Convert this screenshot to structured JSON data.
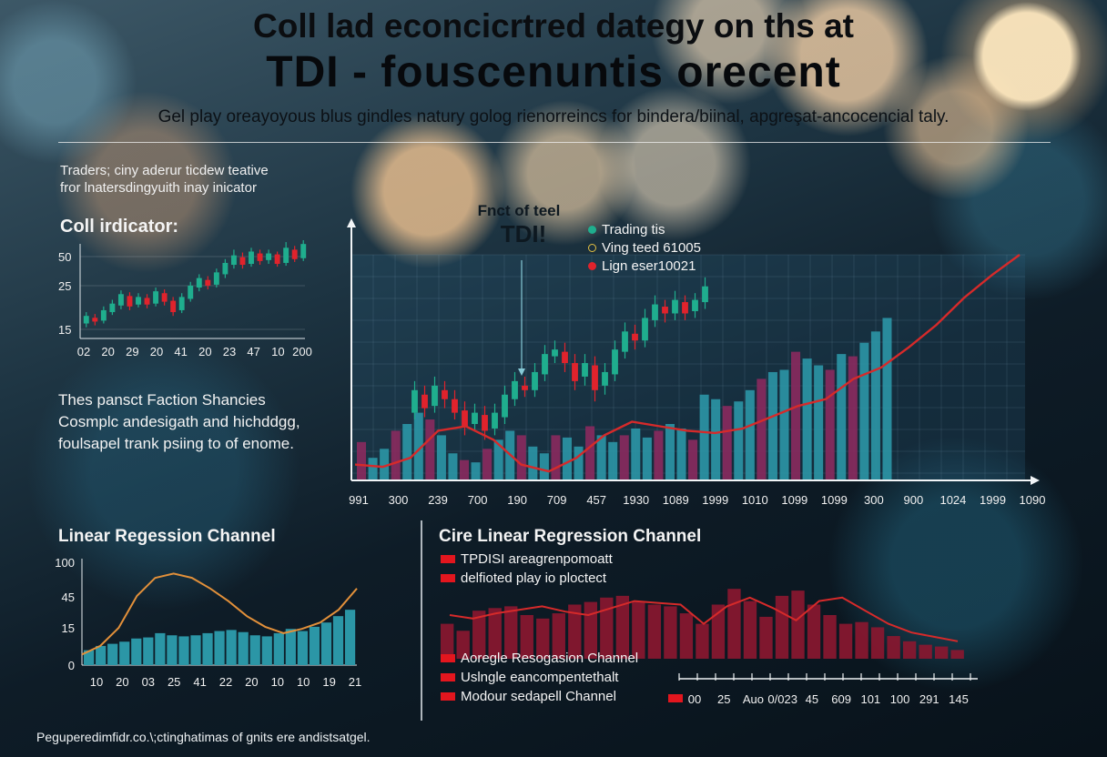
{
  "header": {
    "title_line1": "Coll lad econcicrtred dategy on ths at",
    "title_line2": "TDI - fouscenuntis orecent",
    "subtitle": "Gel play oreayoyous blus gindles natury golog rienorreincs for bindera/biinal, apgreşat-ancocencial taly."
  },
  "intro": {
    "line1": "Traders; ciny aderur ticdew teative",
    "line2": "fror lnatersdingyuith inay inicator"
  },
  "paragraph": {
    "line1": "Thes pansct Faction Shancies",
    "line2": "Cosmplc andesigath and hichddgg,",
    "line3": "foulsapel trank psiing to of enome."
  },
  "footnote": "Peguperedimfidr.co.\\;ctinghatimas of gnits ere andistsatgel.",
  "colors": {
    "candle_up": "#1fae8e",
    "candle_down": "#e0232c",
    "bar_teal": "#2b96a6",
    "bar_magenta": "#8a2a5e",
    "regression_line": "#d62a2a",
    "orange_line": "#e2903a",
    "bar_red": "#8c1730"
  },
  "chart_data": [
    {
      "type": "candlestick",
      "title": "Coll irdicator:",
      "yticks": [
        "50",
        "25",
        "15"
      ],
      "xticks": [
        "02",
        "20",
        "29",
        "20",
        "41",
        "20",
        "23",
        "47",
        "10",
        "200"
      ],
      "candles": [
        {
          "o": 0.12,
          "c": 0.2,
          "h": 0.24,
          "l": 0.08
        },
        {
          "o": 0.18,
          "c": 0.14,
          "h": 0.22,
          "l": 0.1
        },
        {
          "o": 0.15,
          "c": 0.26,
          "h": 0.3,
          "l": 0.12
        },
        {
          "o": 0.24,
          "c": 0.33,
          "h": 0.37,
          "l": 0.21
        },
        {
          "o": 0.31,
          "c": 0.43,
          "h": 0.47,
          "l": 0.27
        },
        {
          "o": 0.41,
          "c": 0.3,
          "h": 0.45,
          "l": 0.26
        },
        {
          "o": 0.32,
          "c": 0.4,
          "h": 0.44,
          "l": 0.29
        },
        {
          "o": 0.39,
          "c": 0.32,
          "h": 0.43,
          "l": 0.28
        },
        {
          "o": 0.33,
          "c": 0.46,
          "h": 0.5,
          "l": 0.3
        },
        {
          "o": 0.44,
          "c": 0.35,
          "h": 0.48,
          "l": 0.31
        },
        {
          "o": 0.36,
          "c": 0.24,
          "h": 0.4,
          "l": 0.2
        },
        {
          "o": 0.26,
          "c": 0.4,
          "h": 0.44,
          "l": 0.23
        },
        {
          "o": 0.38,
          "c": 0.52,
          "h": 0.56,
          "l": 0.35
        },
        {
          "o": 0.5,
          "c": 0.6,
          "h": 0.64,
          "l": 0.46
        },
        {
          "o": 0.58,
          "c": 0.52,
          "h": 0.62,
          "l": 0.48
        },
        {
          "o": 0.53,
          "c": 0.66,
          "h": 0.7,
          "l": 0.5
        },
        {
          "o": 0.64,
          "c": 0.76,
          "h": 0.8,
          "l": 0.6
        },
        {
          "o": 0.74,
          "c": 0.84,
          "h": 0.9,
          "l": 0.7
        },
        {
          "o": 0.82,
          "c": 0.74,
          "h": 0.87,
          "l": 0.7
        },
        {
          "o": 0.75,
          "c": 0.88,
          "h": 0.92,
          "l": 0.72
        },
        {
          "o": 0.86,
          "c": 0.78,
          "h": 0.9,
          "l": 0.74
        },
        {
          "o": 0.79,
          "c": 0.86,
          "h": 0.9,
          "l": 0.75
        },
        {
          "o": 0.85,
          "c": 0.75,
          "h": 0.88,
          "l": 0.72
        },
        {
          "o": 0.76,
          "c": 0.92,
          "h": 0.98,
          "l": 0.73
        },
        {
          "o": 0.9,
          "c": 0.8,
          "h": 0.94,
          "l": 0.77
        },
        {
          "o": 0.81,
          "c": 0.96,
          "h": 1.0,
          "l": 0.78
        }
      ]
    },
    {
      "type": "bar+candlestick+line",
      "annotation_line1": "Fnct of teel",
      "annotation_line2": "TDI!",
      "legend": [
        {
          "label": "Trading tis",
          "color": "#1fae8e"
        },
        {
          "label": "Ving teed 61005",
          "color": "#e2c043"
        },
        {
          "label": "Lign eser10021",
          "color": "#e0232c"
        }
      ],
      "xticks": [
        "991",
        "300",
        "239",
        "700",
        "190",
        "709",
        "457",
        "1930",
        "1089",
        "1999",
        "1010",
        "1099",
        "1099",
        "300",
        "900",
        "1024",
        "1999",
        "1090"
      ],
      "bars": [
        {
          "v": 0.17,
          "c": "m"
        },
        {
          "v": 0.1,
          "c": "t"
        },
        {
          "v": 0.14,
          "c": "t"
        },
        {
          "v": 0.22,
          "c": "m"
        },
        {
          "v": 0.25,
          "c": "t"
        },
        {
          "v": 0.3,
          "c": "t"
        },
        {
          "v": 0.27,
          "c": "m"
        },
        {
          "v": 0.2,
          "c": "t"
        },
        {
          "v": 0.12,
          "c": "t"
        },
        {
          "v": 0.09,
          "c": "m"
        },
        {
          "v": 0.08,
          "c": "t"
        },
        {
          "v": 0.14,
          "c": "m"
        },
        {
          "v": 0.18,
          "c": "t"
        },
        {
          "v": 0.22,
          "c": "t"
        },
        {
          "v": 0.2,
          "c": "m"
        },
        {
          "v": 0.15,
          "c": "t"
        },
        {
          "v": 0.12,
          "c": "t"
        },
        {
          "v": 0.2,
          "c": "m"
        },
        {
          "v": 0.19,
          "c": "t"
        },
        {
          "v": 0.15,
          "c": "t"
        },
        {
          "v": 0.24,
          "c": "m"
        },
        {
          "v": 0.2,
          "c": "t"
        },
        {
          "v": 0.17,
          "c": "t"
        },
        {
          "v": 0.2,
          "c": "m"
        },
        {
          "v": 0.23,
          "c": "t"
        },
        {
          "v": 0.19,
          "c": "t"
        },
        {
          "v": 0.22,
          "c": "m"
        },
        {
          "v": 0.25,
          "c": "t"
        },
        {
          "v": 0.23,
          "c": "t"
        },
        {
          "v": 0.18,
          "c": "m"
        },
        {
          "v": 0.38,
          "c": "t"
        },
        {
          "v": 0.36,
          "c": "t"
        },
        {
          "v": 0.33,
          "c": "m"
        },
        {
          "v": 0.35,
          "c": "t"
        },
        {
          "v": 0.4,
          "c": "t"
        },
        {
          "v": 0.45,
          "c": "m"
        },
        {
          "v": 0.48,
          "c": "t"
        },
        {
          "v": 0.49,
          "c": "t"
        },
        {
          "v": 0.57,
          "c": "m"
        },
        {
          "v": 0.54,
          "c": "t"
        },
        {
          "v": 0.51,
          "c": "t"
        },
        {
          "v": 0.49,
          "c": "m"
        },
        {
          "v": 0.56,
          "c": "t"
        },
        {
          "v": 0.55,
          "c": "m"
        },
        {
          "v": 0.61,
          "c": "t"
        },
        {
          "v": 0.66,
          "c": "t"
        },
        {
          "v": 0.72,
          "c": "t"
        }
      ],
      "candles": [
        {
          "o": 0.3,
          "c": 0.4,
          "h": 0.44,
          "l": 0.27
        },
        {
          "o": 0.38,
          "c": 0.32,
          "h": 0.42,
          "l": 0.28
        },
        {
          "o": 0.33,
          "c": 0.42,
          "h": 0.46,
          "l": 0.3
        },
        {
          "o": 0.4,
          "c": 0.36,
          "h": 0.44,
          "l": 0.32
        },
        {
          "o": 0.36,
          "c": 0.3,
          "h": 0.4,
          "l": 0.27
        },
        {
          "o": 0.31,
          "c": 0.24,
          "h": 0.35,
          "l": 0.2
        },
        {
          "o": 0.25,
          "c": 0.3,
          "h": 0.34,
          "l": 0.22
        },
        {
          "o": 0.29,
          "c": 0.22,
          "h": 0.33,
          "l": 0.18
        },
        {
          "o": 0.23,
          "c": 0.3,
          "h": 0.34,
          "l": 0.2
        },
        {
          "o": 0.28,
          "c": 0.38,
          "h": 0.42,
          "l": 0.25
        },
        {
          "o": 0.36,
          "c": 0.44,
          "h": 0.48,
          "l": 0.33
        },
        {
          "o": 0.42,
          "c": 0.4,
          "h": 0.46,
          "l": 0.37
        },
        {
          "o": 0.4,
          "c": 0.48,
          "h": 0.52,
          "l": 0.37
        },
        {
          "o": 0.47,
          "c": 0.56,
          "h": 0.6,
          "l": 0.44
        },
        {
          "o": 0.55,
          "c": 0.58,
          "h": 0.62,
          "l": 0.52
        },
        {
          "o": 0.57,
          "c": 0.52,
          "h": 0.61,
          "l": 0.48
        },
        {
          "o": 0.52,
          "c": 0.44,
          "h": 0.56,
          "l": 0.4
        },
        {
          "o": 0.46,
          "c": 0.52,
          "h": 0.56,
          "l": 0.42
        },
        {
          "o": 0.51,
          "c": 0.4,
          "h": 0.55,
          "l": 0.35
        },
        {
          "o": 0.42,
          "c": 0.48,
          "h": 0.52,
          "l": 0.38
        },
        {
          "o": 0.47,
          "c": 0.58,
          "h": 0.62,
          "l": 0.44
        },
        {
          "o": 0.57,
          "c": 0.66,
          "h": 0.7,
          "l": 0.54
        },
        {
          "o": 0.65,
          "c": 0.62,
          "h": 0.69,
          "l": 0.58
        },
        {
          "o": 0.62,
          "c": 0.72,
          "h": 0.76,
          "l": 0.59
        },
        {
          "o": 0.71,
          "c": 0.78,
          "h": 0.82,
          "l": 0.68
        },
        {
          "o": 0.77,
          "c": 0.74,
          "h": 0.8,
          "l": 0.7
        },
        {
          "o": 0.74,
          "c": 0.8,
          "h": 0.84,
          "l": 0.71
        },
        {
          "o": 0.79,
          "c": 0.74,
          "h": 0.82,
          "l": 0.71
        },
        {
          "o": 0.75,
          "c": 0.8,
          "h": 0.83,
          "l": 0.72
        },
        {
          "o": 0.79,
          "c": 0.86,
          "h": 0.9,
          "l": 0.76
        }
      ],
      "line": [
        0.07,
        0.06,
        0.1,
        0.22,
        0.24,
        0.18,
        0.07,
        0.04,
        0.1,
        0.2,
        0.26,
        0.24,
        0.22,
        0.21,
        0.23,
        0.28,
        0.33,
        0.36,
        0.45,
        0.5,
        0.59,
        0.69,
        0.81,
        0.91,
        1.0
      ]
    },
    {
      "type": "bar+line",
      "title": "Linear Regession Channel",
      "yticks": [
        "100",
        "45",
        "15",
        "0"
      ],
      "xticks": [
        "10",
        "20",
        "03",
        "25",
        "41",
        "22",
        "20",
        "10",
        "10",
        "19",
        "21"
      ],
      "bars": [
        0.14,
        0.18,
        0.2,
        0.22,
        0.25,
        0.26,
        0.3,
        0.28,
        0.27,
        0.28,
        0.3,
        0.32,
        0.33,
        0.31,
        0.28,
        0.27,
        0.3,
        0.34,
        0.32,
        0.36,
        0.4,
        0.46,
        0.52
      ],
      "line": [
        0.1,
        0.18,
        0.35,
        0.65,
        0.82,
        0.86,
        0.82,
        0.72,
        0.6,
        0.46,
        0.36,
        0.3,
        0.34,
        0.4,
        0.52,
        0.72
      ]
    },
    {
      "type": "bar+line",
      "title": "Cire Linear Regression Channel",
      "legend_top": [
        "TPDISI areagrenpomoatt",
        "delfioted play io ploctect"
      ],
      "legend_bottom": [
        "Aoregle Resogasion Channel",
        "Uslngle eancompentethalt",
        "Modour sedapell Channel"
      ],
      "xticks": [
        "00",
        "25",
        "Auo",
        "0/023",
        "45",
        "609",
        "101",
        "100",
        "291",
        "145"
      ],
      "bars": [
        0.4,
        0.32,
        0.55,
        0.58,
        0.6,
        0.5,
        0.46,
        0.52,
        0.62,
        0.65,
        0.7,
        0.72,
        0.66,
        0.62,
        0.6,
        0.52,
        0.4,
        0.62,
        0.8,
        0.66,
        0.48,
        0.72,
        0.78,
        0.62,
        0.5,
        0.4,
        0.42,
        0.36,
        0.26,
        0.2,
        0.16,
        0.14,
        0.1
      ],
      "line": [
        0.5,
        0.46,
        0.52,
        0.56,
        0.6,
        0.54,
        0.5,
        0.58,
        0.66,
        0.64,
        0.62,
        0.4,
        0.6,
        0.7,
        0.58,
        0.44,
        0.66,
        0.7,
        0.55,
        0.4,
        0.3,
        0.25,
        0.2
      ]
    }
  ]
}
